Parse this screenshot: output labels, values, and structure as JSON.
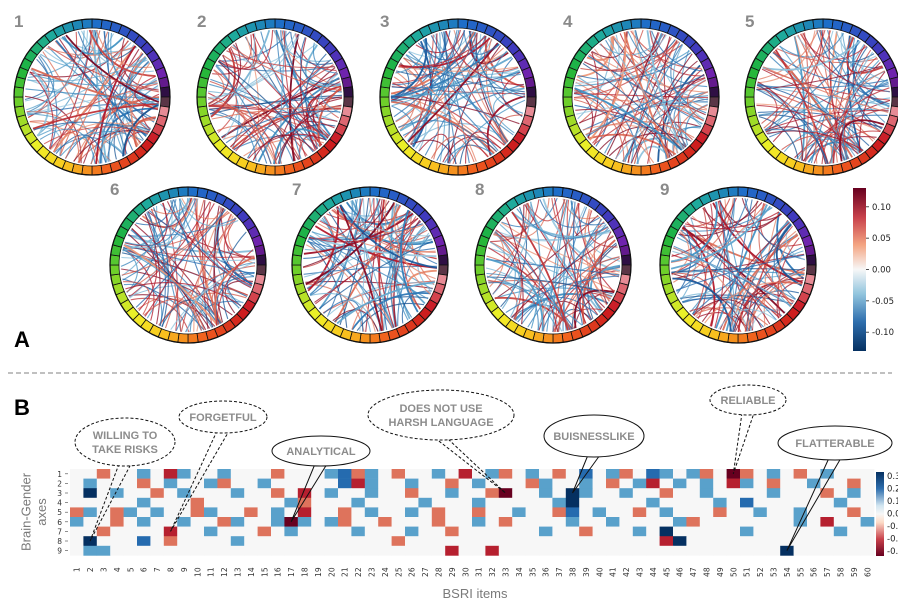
{
  "panel_a": {
    "letter": "A",
    "chord_labels": [
      "1",
      "2",
      "3",
      "4",
      "5",
      "6",
      "7",
      "8",
      "9"
    ],
    "colorbar": {
      "ticks": [
        "0.10",
        "0.05",
        "0.00",
        "-0.05",
        "-0.10"
      ],
      "tick_values": [
        0.1,
        0.05,
        0.0,
        -0.05,
        -0.1
      ],
      "range": [
        -0.13,
        0.13
      ],
      "colors": {
        "high": "#67001f",
        "mid": "#f7f7f7",
        "low": "#053061"
      }
    },
    "ring_segments": 48
  },
  "panel_b": {
    "letter": "B",
    "callouts": [
      {
        "id": "willing",
        "lines": [
          "WILLING TO",
          "TAKE RISKS"
        ],
        "item": 2,
        "axis": 8
      },
      {
        "id": "forgetful",
        "lines": [
          "FORGETFUL"
        ],
        "item": 8,
        "axis": 7
      },
      {
        "id": "analytical",
        "lines": [
          "ANALYTICAL"
        ],
        "item": 17,
        "axis": 6
      },
      {
        "id": "harsh",
        "lines": [
          "DOES NOT USE",
          "HARSH LANGUAGE"
        ],
        "item": 33,
        "axis": 3
      },
      {
        "id": "buisnesslike",
        "lines": [
          "BUISNESSLIKE"
        ],
        "item": 38,
        "axis": 3
      },
      {
        "id": "reliable",
        "lines": [
          "RELIABLE"
        ],
        "item": 50,
        "axis": 1
      },
      {
        "id": "flatterable",
        "lines": [
          "FLATTERABLE"
        ],
        "item": 54,
        "axis": 9
      }
    ]
  },
  "chart_data": {
    "type": "heatmap",
    "xlabel": "BSRI items",
    "ylabel": "Brain-Gender axes",
    "x": [
      "1",
      "2",
      "3",
      "4",
      "5",
      "6",
      "7",
      "8",
      "9",
      "10",
      "11",
      "12",
      "13",
      "14",
      "15",
      "16",
      "17",
      "18",
      "19",
      "20",
      "21",
      "22",
      "23",
      "24",
      "25",
      "26",
      "27",
      "28",
      "29",
      "30",
      "31",
      "32",
      "33",
      "34",
      "35",
      "36",
      "37",
      "38",
      "39",
      "40",
      "41",
      "42",
      "43",
      "44",
      "45",
      "46",
      "47",
      "48",
      "49",
      "50",
      "51",
      "52",
      "53",
      "54",
      "55",
      "56",
      "57",
      "58",
      "59",
      "60"
    ],
    "y": [
      "1",
      "2",
      "3",
      "4",
      "5",
      "6",
      "7",
      "8",
      "9"
    ],
    "colorbar_ticks": [
      "0.3",
      "0.2",
      "0.1",
      "0.0",
      "-0.1",
      "-0.2",
      "-0.3"
    ],
    "colorbar_range": [
      -0.3,
      0.3
    ],
    "values": [
      [
        0.0,
        0.0,
        -0.1,
        0.0,
        0.0,
        0.1,
        0.0,
        -0.2,
        0.1,
        0.0,
        0.0,
        0.1,
        0.0,
        0.0,
        0.0,
        -0.1,
        0.0,
        0.0,
        0.0,
        0.1,
        0.2,
        -0.1,
        0.1,
        0.0,
        -0.1,
        0.0,
        0.0,
        0.1,
        0.0,
        -0.2,
        0.0,
        0.1,
        -0.1,
        0.0,
        0.1,
        0.0,
        -0.1,
        0.0,
        0.2,
        0.0,
        0.1,
        -0.1,
        0.0,
        0.2,
        0.1,
        0.0,
        0.1,
        -0.1,
        0.0,
        -0.3,
        -0.1,
        0.0,
        0.1,
        0.0,
        -0.1,
        0.0,
        0.1,
        0.0,
        0.0,
        0.0
      ],
      [
        0.0,
        0.1,
        0.0,
        0.0,
        0.0,
        -0.1,
        0.0,
        0.1,
        0.0,
        0.0,
        0.1,
        -0.1,
        0.0,
        0.0,
        0.1,
        0.0,
        0.0,
        0.0,
        0.0,
        0.0,
        0.2,
        -0.2,
        0.1,
        0.0,
        0.0,
        0.1,
        0.0,
        0.0,
        -0.1,
        0.0,
        0.1,
        0.0,
        0.0,
        0.0,
        -0.1,
        0.1,
        0.0,
        0.0,
        0.1,
        0.0,
        -0.1,
        0.0,
        0.1,
        -0.2,
        0.0,
        0.1,
        0.0,
        0.1,
        0.0,
        -0.2,
        0.1,
        0.0,
        -0.1,
        0.0,
        0.0,
        0.1,
        0.0,
        0.0,
        -0.1,
        0.0
      ],
      [
        0.0,
        0.3,
        0.0,
        0.1,
        0.0,
        0.0,
        -0.1,
        0.0,
        0.1,
        0.0,
        0.0,
        0.0,
        0.1,
        0.0,
        0.0,
        -0.1,
        0.0,
        -0.2,
        0.0,
        0.1,
        0.0,
        0.0,
        0.1,
        0.0,
        0.0,
        -0.1,
        0.0,
        0.0,
        0.1,
        0.0,
        0.0,
        -0.1,
        -0.3,
        0.0,
        0.0,
        0.1,
        0.0,
        0.3,
        0.1,
        0.0,
        0.0,
        0.1,
        0.0,
        0.0,
        -0.1,
        0.0,
        0.0,
        0.1,
        0.0,
        0.0,
        0.0,
        0.0,
        0.1,
        0.0,
        0.0,
        0.0,
        -0.1,
        0.0,
        0.1,
        0.0
      ],
      [
        0.0,
        0.0,
        0.0,
        0.0,
        0.0,
        0.1,
        0.0,
        0.0,
        0.0,
        -0.1,
        0.0,
        0.0,
        0.0,
        0.0,
        0.0,
        0.0,
        0.1,
        -0.1,
        0.0,
        0.0,
        0.0,
        0.1,
        0.0,
        0.0,
        0.0,
        0.0,
        0.1,
        0.0,
        0.0,
        0.0,
        0.1,
        0.0,
        0.0,
        0.0,
        0.0,
        0.0,
        0.1,
        0.3,
        0.0,
        0.0,
        0.0,
        0.0,
        0.0,
        0.1,
        0.0,
        0.0,
        0.0,
        0.0,
        0.1,
        0.0,
        0.2,
        0.0,
        0.0,
        0.0,
        0.0,
        0.0,
        0.0,
        0.1,
        0.0,
        0.0
      ],
      [
        -0.1,
        0.1,
        0.0,
        -0.1,
        0.1,
        0.0,
        0.1,
        0.0,
        0.0,
        -0.1,
        0.1,
        0.0,
        0.0,
        -0.1,
        0.0,
        0.1,
        0.0,
        -0.2,
        0.0,
        0.0,
        -0.1,
        0.0,
        0.1,
        0.0,
        0.0,
        0.1,
        0.0,
        -0.1,
        0.0,
        0.0,
        -0.1,
        0.0,
        0.0,
        0.1,
        0.0,
        0.0,
        -0.1,
        0.2,
        0.0,
        0.1,
        0.0,
        0.0,
        -0.1,
        0.0,
        0.1,
        0.0,
        0.0,
        0.0,
        -0.1,
        0.0,
        0.0,
        0.1,
        0.0,
        0.0,
        0.1,
        0.0,
        0.0,
        0.0,
        -0.1,
        0.0
      ],
      [
        0.1,
        0.0,
        0.0,
        -0.1,
        0.0,
        0.1,
        0.0,
        0.0,
        0.1,
        0.0,
        0.0,
        -0.1,
        0.1,
        0.0,
        0.0,
        0.1,
        -0.3,
        0.1,
        0.0,
        0.1,
        -0.1,
        0.0,
        0.0,
        -0.1,
        0.0,
        0.0,
        0.0,
        -0.1,
        0.0,
        0.0,
        0.1,
        0.0,
        -0.1,
        0.0,
        0.0,
        0.0,
        0.0,
        0.1,
        0.0,
        0.0,
        0.1,
        0.0,
        0.0,
        0.0,
        0.0,
        0.1,
        -0.1,
        0.0,
        0.0,
        0.0,
        0.0,
        0.0,
        0.0,
        0.0,
        0.1,
        0.0,
        -0.2,
        0.0,
        0.0,
        0.1
      ],
      [
        0.0,
        0.0,
        -0.1,
        0.0,
        0.0,
        0.0,
        0.0,
        -0.2,
        0.0,
        0.0,
        0.1,
        0.0,
        0.0,
        0.0,
        -0.1,
        0.0,
        0.1,
        0.0,
        0.0,
        0.0,
        0.0,
        0.1,
        0.0,
        0.0,
        0.0,
        0.1,
        0.0,
        0.0,
        -0.1,
        0.0,
        0.0,
        0.0,
        0.0,
        0.0,
        0.0,
        0.1,
        0.0,
        0.0,
        -0.1,
        0.0,
        0.0,
        0.0,
        0.1,
        0.0,
        0.3,
        0.0,
        0.0,
        0.0,
        0.0,
        0.0,
        0.1,
        0.0,
        0.0,
        0.0,
        0.0,
        0.0,
        0.0,
        0.1,
        0.0,
        0.0
      ],
      [
        0.0,
        0.3,
        0.0,
        0.0,
        0.0,
        0.2,
        0.0,
        -0.1,
        0.0,
        0.0,
        0.0,
        0.0,
        0.1,
        0.0,
        0.0,
        0.0,
        0.0,
        0.0,
        0.0,
        0.0,
        0.0,
        0.0,
        0.0,
        0.0,
        -0.1,
        0.0,
        0.0,
        0.0,
        0.0,
        0.0,
        0.0,
        0.0,
        0.0,
        0.0,
        0.0,
        0.0,
        0.0,
        0.0,
        0.0,
        0.0,
        0.0,
        0.0,
        0.0,
        0.0,
        -0.2,
        0.3,
        0.0,
        0.0,
        0.0,
        0.0,
        0.0,
        0.0,
        0.0,
        0.0,
        0.0,
        0.0,
        0.0,
        0.0,
        0.0,
        0.0
      ],
      [
        0.0,
        0.1,
        0.1,
        0.0,
        0.0,
        0.0,
        0.0,
        0.0,
        0.0,
        0.0,
        0.0,
        0.0,
        0.0,
        0.0,
        0.0,
        0.0,
        0.0,
        0.0,
        0.0,
        0.0,
        0.0,
        0.0,
        0.0,
        0.0,
        0.0,
        0.0,
        0.0,
        0.0,
        -0.2,
        0.0,
        0.0,
        -0.2,
        0.0,
        0.0,
        0.0,
        0.0,
        0.0,
        0.0,
        0.0,
        0.0,
        0.0,
        0.0,
        0.0,
        0.0,
        0.0,
        0.0,
        0.0,
        0.0,
        0.0,
        0.0,
        0.0,
        0.0,
        0.0,
        0.3,
        0.0,
        0.0,
        0.0,
        0.0,
        0.0,
        0.0
      ]
    ]
  }
}
